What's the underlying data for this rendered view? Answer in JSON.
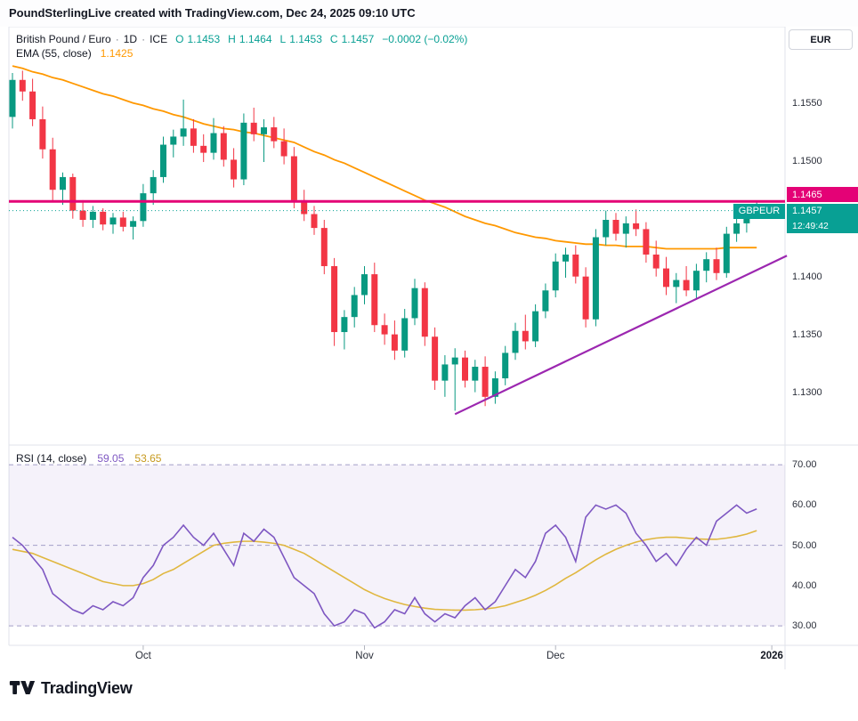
{
  "header": {
    "title": "PoundSterlingLive created with TradingView.com, Dec 24, 2025 09:10 UTC"
  },
  "legend": {
    "symbol": "British Pound / Euro",
    "dot": "·",
    "interval": "1D",
    "exchange": "ICE",
    "ohlc": {
      "o_label": "O",
      "o": "1.1453",
      "h_label": "H",
      "h": "1.1464",
      "l_label": "L",
      "l": "1.1453",
      "c_label": "C",
      "c": "1.1457",
      "change": "−0.0002 (−0.02%)"
    },
    "ema_label": "EMA (55, close)",
    "ema_value": "1.1425"
  },
  "rsi_legend": {
    "label": "RSI (14, close)",
    "value": "59.05",
    "ma_value": "53.65"
  },
  "currency_button": "EUR",
  "badges": {
    "resistance": "1.1465",
    "symbol_label": "GBPEUR",
    "last_price": "1.1457",
    "countdown": "12:49:42"
  },
  "footer": {
    "brand": "TradingView"
  },
  "colors": {
    "up": "#089981",
    "down": "#f23645",
    "teal": "#08a094",
    "ema": "#ff9800",
    "resistance": "#e40276",
    "trendline": "#9c27b0",
    "rsi": "#7e57c2",
    "rsi_ma": "#e0b73f",
    "rsi_band": "#7e57c214",
    "rsi_level": "#a39fc7",
    "border": "#e0e3eb",
    "tick": "#b2b5be"
  },
  "chart_data": {
    "type": "candlestick",
    "title": "British Pound / Euro · 1D · ICE",
    "x_axis": {
      "month_ticks": [
        {
          "label": "Oct",
          "index": 13,
          "emphasis": false
        },
        {
          "label": "Nov",
          "index": 35,
          "emphasis": false
        },
        {
          "label": "Dec",
          "index": 54,
          "emphasis": false
        },
        {
          "label": "2026",
          "index": 75.5,
          "emphasis": true
        }
      ]
    },
    "price_pane": {
      "ylim": [
        1.1262,
        1.1616
      ],
      "y_ticks": [
        1.155,
        1.15,
        1.14,
        1.135,
        1.13
      ],
      "resistance_line": {
        "price": 1.1465
      },
      "last_price_line": {
        "price": 1.1457
      },
      "trendline": {
        "from_index": 44,
        "from_price": 1.1281,
        "to_index": 77,
        "to_price": 1.1418
      },
      "candles": [
        [
          1.1538,
          1.1576,
          1.1528,
          1.157
        ],
        [
          1.157,
          1.1578,
          1.1552,
          1.156
        ],
        [
          1.156,
          1.1571,
          1.153,
          1.1536
        ],
        [
          1.1536,
          1.1547,
          1.1502,
          1.151
        ],
        [
          1.151,
          1.152,
          1.1466,
          1.1475
        ],
        [
          1.1475,
          1.149,
          1.1462,
          1.1486
        ],
        [
          1.1486,
          1.1489,
          1.145,
          1.1457
        ],
        [
          1.1457,
          1.1466,
          1.1443,
          1.1449
        ],
        [
          1.1449,
          1.1461,
          1.1442,
          1.1456
        ],
        [
          1.1456,
          1.1459,
          1.144,
          1.1445
        ],
        [
          1.1445,
          1.1455,
          1.1437,
          1.1451
        ],
        [
          1.1451,
          1.1456,
          1.1439,
          1.1443
        ],
        [
          1.1443,
          1.1452,
          1.1432,
          1.1448
        ],
        [
          1.1448,
          1.148,
          1.1443,
          1.1472
        ],
        [
          1.1472,
          1.1492,
          1.1462,
          1.1486
        ],
        [
          1.1486,
          1.1521,
          1.1481,
          1.1514
        ],
        [
          1.1514,
          1.1527,
          1.1503,
          1.1521
        ],
        [
          1.1521,
          1.1553,
          1.1513,
          1.1528
        ],
        [
          1.1528,
          1.1536,
          1.1507,
          1.1513
        ],
        [
          1.1513,
          1.1523,
          1.1499,
          1.1507
        ],
        [
          1.1507,
          1.1537,
          1.1501,
          1.1524
        ],
        [
          1.1524,
          1.153,
          1.1495,
          1.1501
        ],
        [
          1.1501,
          1.1511,
          1.1477,
          1.1484
        ],
        [
          1.1484,
          1.1541,
          1.1479,
          1.1533
        ],
        [
          1.1533,
          1.1546,
          1.1517,
          1.1523
        ],
        [
          1.1523,
          1.1536,
          1.1499,
          1.1529
        ],
        [
          1.1529,
          1.1538,
          1.1511,
          1.1517
        ],
        [
          1.1517,
          1.1528,
          1.1497,
          1.1504
        ],
        [
          1.1504,
          1.1512,
          1.1459,
          1.1466
        ],
        [
          1.1466,
          1.1475,
          1.1448,
          1.1454
        ],
        [
          1.1454,
          1.1461,
          1.1436,
          1.1442
        ],
        [
          1.1442,
          1.1449,
          1.1402,
          1.1409
        ],
        [
          1.1409,
          1.1416,
          1.134,
          1.1352
        ],
        [
          1.1352,
          1.1371,
          1.1337,
          1.1365
        ],
        [
          1.1365,
          1.1391,
          1.1356,
          1.1384
        ],
        [
          1.1384,
          1.1409,
          1.1376,
          1.1402
        ],
        [
          1.1402,
          1.1412,
          1.1352,
          1.1358
        ],
        [
          1.1358,
          1.1368,
          1.1341,
          1.135
        ],
        [
          1.135,
          1.1362,
          1.1328,
          1.1336
        ],
        [
          1.1336,
          1.1372,
          1.133,
          1.1364
        ],
        [
          1.1364,
          1.1398,
          1.1358,
          1.139
        ],
        [
          1.139,
          1.1395,
          1.134,
          1.1348
        ],
        [
          1.1348,
          1.1356,
          1.1302,
          1.131
        ],
        [
          1.131,
          1.1332,
          1.1296,
          1.1324
        ],
        [
          1.1324,
          1.1338,
          1.1284,
          1.133
        ],
        [
          1.133,
          1.1336,
          1.1304,
          1.131
        ],
        [
          1.131,
          1.1328,
          1.13,
          1.1322
        ],
        [
          1.1322,
          1.1331,
          1.1288,
          1.1296
        ],
        [
          1.1296,
          1.1318,
          1.129,
          1.1312
        ],
        [
          1.1312,
          1.134,
          1.1306,
          1.1334
        ],
        [
          1.1334,
          1.136,
          1.1328,
          1.1353
        ],
        [
          1.1353,
          1.1367,
          1.1337,
          1.1344
        ],
        [
          1.1344,
          1.1376,
          1.1339,
          1.137
        ],
        [
          1.137,
          1.1394,
          1.1364,
          1.1388
        ],
        [
          1.1388,
          1.142,
          1.1382,
          1.1413
        ],
        [
          1.1413,
          1.1425,
          1.1399,
          1.1419
        ],
        [
          1.1419,
          1.1427,
          1.1394,
          1.14
        ],
        [
          1.14,
          1.1408,
          1.1356,
          1.1363
        ],
        [
          1.1363,
          1.1441,
          1.1357,
          1.1434
        ],
        [
          1.1434,
          1.1457,
          1.1427,
          1.1449
        ],
        [
          1.1449,
          1.1455,
          1.1431,
          1.1437
        ],
        [
          1.1437,
          1.1452,
          1.1425,
          1.1446
        ],
        [
          1.1446,
          1.1458,
          1.1435,
          1.1441
        ],
        [
          1.1441,
          1.1447,
          1.1412,
          1.1419
        ],
        [
          1.1419,
          1.1431,
          1.14,
          1.1407
        ],
        [
          1.1407,
          1.1417,
          1.1384,
          1.1391
        ],
        [
          1.1391,
          1.1403,
          1.1377,
          1.1397
        ],
        [
          1.1397,
          1.1409,
          1.1383,
          1.1388
        ],
        [
          1.1388,
          1.1411,
          1.1381,
          1.1405
        ],
        [
          1.1405,
          1.1421,
          1.1395,
          1.1415
        ],
        [
          1.1415,
          1.1425,
          1.1397,
          1.1403
        ],
        [
          1.1403,
          1.1443,
          1.1399,
          1.1437
        ],
        [
          1.1437,
          1.1452,
          1.143,
          1.1446
        ],
        [
          1.1446,
          1.1461,
          1.1438,
          1.145
        ],
        [
          1.1453,
          1.1464,
          1.1453,
          1.1457
        ]
      ],
      "ema55": [
        1.1582,
        1.158,
        1.1577,
        1.1575,
        1.1572,
        1.157,
        1.1567,
        1.1564,
        1.1561,
        1.1558,
        1.1556,
        1.1553,
        1.155,
        1.1548,
        1.1545,
        1.1543,
        1.154,
        1.1538,
        1.1535,
        1.1532,
        1.153,
        1.1528,
        1.1527,
        1.1525,
        1.1524,
        1.1522,
        1.152,
        1.1518,
        1.1516,
        1.1512,
        1.1508,
        1.1505,
        1.1501,
        1.1498,
        1.1494,
        1.149,
        1.1486,
        1.1482,
        1.1478,
        1.1474,
        1.147,
        1.1466,
        1.1463,
        1.146,
        1.1456,
        1.1452,
        1.1449,
        1.1446,
        1.1444,
        1.1441,
        1.1438,
        1.1436,
        1.1434,
        1.1433,
        1.1431,
        1.143,
        1.1429,
        1.1428,
        1.1428,
        1.1427,
        1.1427,
        1.1426,
        1.1426,
        1.1426,
        1.1425,
        1.1424,
        1.1424,
        1.1424,
        1.1424,
        1.1424,
        1.1424,
        1.1425,
        1.1425,
        1.1425,
        1.1425
      ]
    },
    "rsi_pane": {
      "ylim": [
        25.6,
        73.8
      ],
      "y_ticks": [
        70,
        60,
        50,
        40,
        30
      ],
      "levels": [
        70,
        50,
        30
      ],
      "band": [
        30,
        70
      ],
      "rsi": [
        52,
        50,
        47,
        44,
        38,
        36,
        34,
        33,
        35,
        34,
        36,
        35,
        37,
        42,
        45,
        50,
        52,
        55,
        52,
        50,
        53,
        49,
        45,
        53,
        51,
        54,
        52,
        47,
        42,
        40,
        38,
        33,
        30,
        31,
        34,
        33,
        29.5,
        31,
        34,
        33,
        37,
        33,
        31,
        33,
        32,
        35,
        37,
        34,
        36,
        40,
        44,
        42,
        46,
        53,
        55,
        52,
        46,
        57,
        60,
        59,
        60,
        58,
        53,
        50,
        46,
        48,
        45,
        49,
        52,
        50,
        56,
        58,
        60,
        58,
        59.05
      ],
      "rsi_ma": [
        49,
        48.5,
        48,
        47,
        46,
        45,
        44,
        43,
        42,
        41,
        40.5,
        40,
        40,
        40.5,
        41.5,
        43,
        44,
        45.5,
        47,
        48.5,
        50,
        50.5,
        50.8,
        51,
        51,
        50.8,
        50.5,
        50,
        49,
        48,
        46.5,
        45,
        43.5,
        42,
        40.5,
        39,
        37.8,
        36.8,
        36,
        35.3,
        34.8,
        34.4,
        34.1,
        34,
        33.9,
        33.9,
        34,
        34.2,
        34.5,
        35,
        35.8,
        36.6,
        37.6,
        38.8,
        40.2,
        41.8,
        43.2,
        44.8,
        46.4,
        47.8,
        49,
        50,
        50.8,
        51.4,
        51.8,
        52,
        52,
        51.8,
        51.6,
        51.5,
        51.5,
        51.8,
        52.2,
        52.8,
        53.65
      ]
    }
  }
}
